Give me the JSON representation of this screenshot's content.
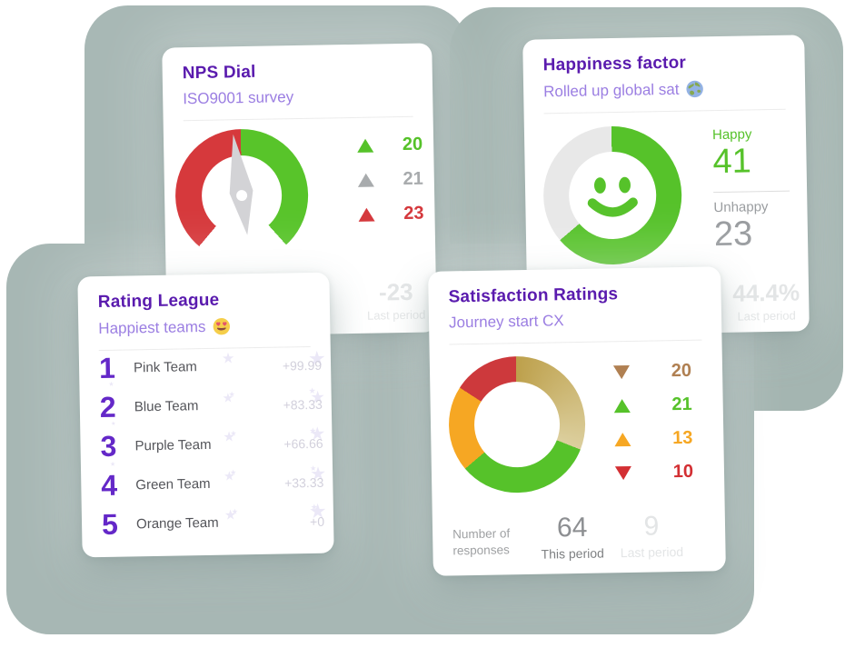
{
  "colors": {
    "sage_base": "#a8b8b5",
    "sage_right": "#a4b5b1",
    "sage_bottom": "#a7b7b4",
    "title_purple": "#5a1bae",
    "subtitle_purple": "#9b7ee2",
    "rank_purple": "#6428c8",
    "green": "#56c22a",
    "red": "#d5393d",
    "gray_text": "#9a9da0",
    "light_gray": "#e3e5e6",
    "score_gray": "#d2d0dc",
    "star": "#ebe8f7",
    "needle_gray": "#d3d3d6",
    "donut_gray": "#e8e8e8"
  },
  "cards": {
    "nps": {
      "title": "NPS Dial",
      "subtitle": "ISO9001 survey",
      "legend": [
        {
          "dir": "up",
          "color": "#56c22a",
          "value": "20"
        },
        {
          "dir": "up",
          "color": "#a8abad",
          "value": "21"
        },
        {
          "dir": "up",
          "color": "#d5393d",
          "value": "23"
        }
      ],
      "last_period": {
        "value": "-23",
        "label": "Last period"
      }
    },
    "happiness": {
      "title": "Happiness factor",
      "subtitle": "Rolled up global sat",
      "subtitle_icon": "globe-emoji",
      "happy": {
        "label": "Happy",
        "value": "41"
      },
      "unhappy": {
        "label": "Unhappy",
        "value": "23"
      },
      "last_period": {
        "value": "44.4%",
        "label": "Last period"
      }
    },
    "rating": {
      "title": "Rating League",
      "subtitle": "Happiest teams",
      "subtitle_icon": "heart-eyes-emoji",
      "rows": [
        {
          "rank": "1",
          "team": "Pink Team",
          "score": "+99.99"
        },
        {
          "rank": "2",
          "team": "Blue Team",
          "score": "+83.33"
        },
        {
          "rank": "3",
          "team": "Purple Team",
          "score": "+66.66"
        },
        {
          "rank": "4",
          "team": "Green Team",
          "score": "+33.33"
        },
        {
          "rank": "5",
          "team": "Orange Team",
          "score": "+0"
        }
      ]
    },
    "satisfaction": {
      "title": "Satisfaction Ratings",
      "subtitle": "Journey start CX",
      "legend": [
        {
          "dir": "down",
          "color": "#b08052",
          "value": "20"
        },
        {
          "dir": "up",
          "color": "#56c22a",
          "value": "21"
        },
        {
          "dir": "up",
          "color": "#f6a723",
          "value": "13"
        },
        {
          "dir": "down",
          "color": "#d32f33",
          "value": "10"
        }
      ],
      "responses_label_1": "Number of",
      "responses_label_2": "responses",
      "this_period": {
        "value": "64",
        "label": "This period"
      },
      "last_period": {
        "value": "9",
        "label": "Last period"
      }
    }
  },
  "chart_data": [
    {
      "type": "gauge",
      "title": "NPS Dial",
      "subtitle": "ISO9001 survey",
      "values": [
        20,
        21,
        23
      ],
      "value_colors": [
        "#56c22a",
        "#a8abad",
        "#d5393d"
      ],
      "last_period": -23,
      "arc_start_deg": -139,
      "arc_end_deg": 139,
      "needle_deg": -7,
      "arc_segments": [
        {
          "color": "#d6393c",
          "from_deg": -139,
          "to_deg": 0
        },
        {
          "color": "#58c42a",
          "from_deg": 0,
          "to_deg": 139
        }
      ]
    },
    {
      "type": "pie",
      "title": "Happiness factor",
      "subtitle": "Rolled up global sat",
      "categories": [
        "Happy",
        "Unhappy"
      ],
      "values": [
        41,
        23
      ],
      "colors": [
        "#56c22a",
        "#e8e8e8"
      ],
      "center_icon": "smiley-face",
      "last_period": "44.4%"
    },
    {
      "type": "table",
      "title": "Rating League",
      "subtitle": "Happiest teams",
      "columns": [
        "rank",
        "team",
        "score"
      ],
      "rows": [
        [
          1,
          "Pink Team",
          99.99
        ],
        [
          2,
          "Blue Team",
          83.33
        ],
        [
          3,
          "Purple Team",
          66.66
        ],
        [
          4,
          "Green Team",
          33.33
        ],
        [
          5,
          "Orange Team",
          0
        ]
      ]
    },
    {
      "type": "pie",
      "title": "Satisfaction Ratings",
      "subtitle": "Journey start CX",
      "values": [
        20,
        21,
        13,
        10
      ],
      "colors": [
        [
          "#bda04b",
          "#dccf9e"
        ],
        "#56c22a",
        "#f6a723",
        "#cd393c"
      ],
      "this_period": 64,
      "last_period": 9
    }
  ]
}
